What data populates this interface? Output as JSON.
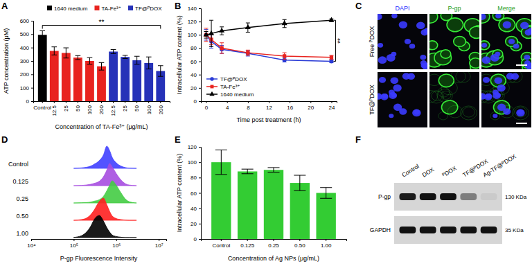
{
  "chart_data": [
    {
      "panel": "A",
      "type": "bar",
      "y_label": "ATP concentration (μM)",
      "x_label": "Concentration of TA-Fe³⁺ (μg/mL)",
      "categories": [
        "Control",
        "12.5",
        "25",
        "50",
        "100",
        "200",
        "12.5",
        "25",
        "50",
        "100",
        "200"
      ],
      "series": [
        {
          "name": "1640 medium",
          "color": "#000000",
          "values": [
            495,
            null,
            null,
            null,
            null,
            null,
            null,
            null,
            null,
            null,
            null
          ],
          "errors": [
            30,
            null,
            null,
            null,
            null,
            null,
            null,
            null,
            null,
            null,
            null
          ]
        },
        {
          "name": "TA-Fe³⁺",
          "color": "#e8231f",
          "values": [
            null,
            375,
            360,
            325,
            300,
            260,
            null,
            null,
            null,
            null,
            null
          ],
          "errors": [
            null,
            30,
            38,
            15,
            25,
            28,
            null,
            null,
            null,
            null,
            null
          ]
        },
        {
          "name": "TF@ᴾDOX",
          "color": "#2632b8",
          "values": [
            null,
            null,
            null,
            null,
            null,
            null,
            370,
            330,
            305,
            285,
            225
          ],
          "errors": [
            null,
            null,
            null,
            null,
            null,
            null,
            15,
            12,
            30,
            45,
            40
          ]
        }
      ],
      "ylim": [
        0,
        600
      ],
      "yticks": [
        0,
        100,
        200,
        300,
        400,
        500,
        600
      ],
      "legend": "top",
      "annotations": [
        {
          "text": "**"
        }
      ]
    },
    {
      "panel": "B",
      "type": "line",
      "x_label": "Time post treatment (h)",
      "y_label": "Intracellular ATP content (%)",
      "x": [
        0,
        1,
        3,
        8,
        15,
        24
      ],
      "series": [
        {
          "name": "TF@ᴾDOX",
          "color": "#2a3bd6",
          "marker": "circle",
          "line_style": "solid",
          "values": [
            100,
            90,
            78,
            72,
            62,
            60
          ],
          "errors": [
            8,
            10,
            6,
            4,
            3,
            2
          ]
        },
        {
          "name": "TA-Fe³⁺",
          "color": "#e8231f",
          "marker": "square",
          "line_style": "solid",
          "values": [
            100,
            93,
            80,
            73,
            68,
            66
          ],
          "errors": [
            10,
            8,
            8,
            4,
            5,
            3
          ]
        },
        {
          "name": "1640 medium",
          "color": "#000000",
          "marker": "triangle",
          "line_style": "solid",
          "values": [
            100,
            102,
            106,
            111,
            117,
            122
          ],
          "errors": [
            5,
            20,
            6,
            7,
            6,
            2
          ]
        }
      ],
      "xlim": [
        -1,
        25
      ],
      "xticks": [
        0,
        4,
        8,
        12,
        16,
        20,
        24
      ],
      "ylim": [
        0,
        140
      ],
      "yticks": [
        0,
        20,
        40,
        60,
        80,
        100,
        120,
        140
      ],
      "legend": "bottom-left",
      "annotations": [
        {
          "text": "**"
        }
      ]
    },
    {
      "panel": "C",
      "type": "image",
      "columns": [
        "DAPI",
        "P-gp",
        "Merge"
      ],
      "rows": [
        "Free ᴾDOX",
        "TF@ᴾDOX"
      ],
      "colors": [
        "#2a2aff",
        "#1fa01f",
        "#1fa01f"
      ]
    },
    {
      "panel": "D",
      "type": "area",
      "x_label": "P-gp Fluorescence Intensity",
      "log": "x",
      "x": [
        100000,
        150000,
        200000,
        250000,
        300000,
        400000,
        500000,
        600000,
        700000,
        800000,
        1000000,
        1300000,
        1600000,
        2000000,
        3000000
      ],
      "series": [
        {
          "name": "Control",
          "color": "#4040ff",
          "values": [
            0,
            2,
            5,
            10,
            18,
            35,
            60,
            100,
            80,
            50,
            25,
            10,
            4,
            1,
            0
          ]
        },
        {
          "name": "0.125",
          "color": "#a64ce0",
          "values": [
            0,
            1,
            3,
            6,
            10,
            20,
            40,
            70,
            100,
            85,
            55,
            25,
            10,
            3,
            0
          ]
        },
        {
          "name": "0.25",
          "color": "#44cc44",
          "values": [
            0,
            1,
            2,
            4,
            8,
            15,
            30,
            55,
            80,
            100,
            80,
            45,
            20,
            6,
            0
          ]
        },
        {
          "name": "0.50",
          "color": "#ff2020",
          "values": [
            0,
            3,
            10,
            25,
            45,
            85,
            100,
            70,
            40,
            20,
            8,
            3,
            1,
            0,
            0
          ]
        },
        {
          "name": "1.00",
          "color": "#000000",
          "values": [
            1,
            8,
            25,
            50,
            80,
            100,
            75,
            45,
            25,
            12,
            5,
            2,
            0,
            0,
            0
          ]
        }
      ],
      "xlim": [
        10000,
        15000000
      ],
      "xticks": [
        {
          "value": 10000,
          "label": "10⁴"
        },
        {
          "value": 100000,
          "label": "10⁵"
        },
        {
          "value": 1000000,
          "label": "10⁶"
        },
        {
          "value": 10000000,
          "label": "10⁷"
        }
      ],
      "ylim": [
        0,
        100
      ],
      "tick_labels": "x"
    },
    {
      "panel": "E",
      "type": "bar",
      "y_label": "Intracellular ATP content (%)",
      "x_label": "Concentration of Ag NPs  (μg/mL)",
      "categories": [
        "Control",
        "0.125",
        "0.25",
        "0.50",
        "1.00"
      ],
      "values": [
        100,
        88,
        90,
        73,
        60
      ],
      "errors": [
        16,
        3,
        3,
        10,
        7
      ],
      "color": "#33cc33",
      "ylim": [
        0,
        120
      ],
      "yticks": [
        0,
        20,
        40,
        60,
        80,
        100,
        120
      ]
    },
    {
      "panel": "F",
      "type": "blot",
      "lanes": [
        "Control",
        "DOX",
        "ᴾDOX",
        "TF@ᴾDOX",
        "Ag-TF@ᴾDOX"
      ],
      "rows": [
        {
          "name": "P-gp",
          "size": "130 KDa",
          "values": [
            0.95,
            1,
            1,
            0.45,
            0.06
          ]
        },
        {
          "name": "GAPDH",
          "size": "35 KDa",
          "values": [
            1,
            1,
            1,
            1,
            1
          ]
        }
      ]
    }
  ]
}
